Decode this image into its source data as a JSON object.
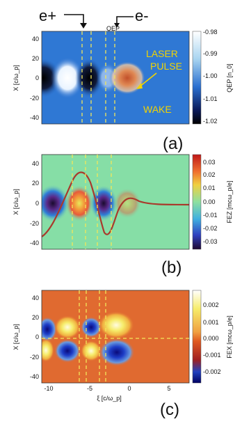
{
  "header": {
    "positron_label": "e+",
    "electron_label": "e-",
    "small_label": "QEP"
  },
  "panels": [
    {
      "id": "a",
      "panel_label": "(a)",
      "ylabel": "X [c/ω_p]",
      "yticks": [
        "40",
        "20",
        "0",
        "-20",
        "-40"
      ],
      "colorbar_label": "QEP [n_0]",
      "colorbar_ticks": [
        "-0.98",
        "-0.99",
        "-1.00",
        "-1.01",
        "-1.02"
      ],
      "annotations": [
        "LASER",
        "PULSE",
        "WAKE"
      ]
    },
    {
      "id": "b",
      "panel_label": "(b)",
      "ylabel": "X [c/ω_p]",
      "yticks": [
        "40",
        "20",
        "0",
        "-20",
        "-40"
      ],
      "colorbar_label": "FEZ [mcω_p/e]",
      "colorbar_ticks": [
        "0.03",
        "0.02",
        "0.01",
        "0.00",
        "-0.01",
        "-0.02",
        "-0.03"
      ]
    },
    {
      "id": "c",
      "panel_label": "(c)",
      "ylabel": "X [c/ω_p]",
      "yticks": [
        "40",
        "20",
        "0",
        "-20",
        "-40"
      ],
      "xlabel": "ξ [c/ω_p]",
      "xticks": [
        "-10",
        "-5",
        "0",
        "5"
      ],
      "colorbar_label": "FEX [mcω_p/e]",
      "colorbar_ticks": [
        "0.002",
        "0.001",
        "0.000",
        "-0.001",
        "-0.002"
      ]
    }
  ],
  "chart_data": [
    {
      "type": "heatmap",
      "title": "",
      "xlabel": "",
      "ylabel": "X [c/ω_p]",
      "ylim": [
        -45,
        45
      ],
      "colorbar": {
        "label": "QEP [n_0]",
        "range": [
          -1.02,
          -0.98
        ]
      },
      "annotations": [
        "LASER",
        "PULSE",
        "WAKE"
      ]
    },
    {
      "type": "heatmap",
      "title": "",
      "xlabel": "",
      "ylabel": "X [c/ω_p]",
      "ylim": [
        -45,
        45
      ],
      "colorbar": {
        "label": "FEZ [mcω_p/e]",
        "range": [
          -0.035,
          0.035
        ]
      },
      "series": [
        {
          "x": [
            -11,
            -10,
            -9,
            -8,
            -7,
            -6,
            -5,
            -4,
            -3,
            -2,
            -1,
            0,
            1,
            2,
            3,
            4,
            5,
            6,
            7,
            8
          ],
          "values": [
            -33,
            -18,
            5,
            25,
            34,
            18,
            -8,
            -28,
            -33,
            -10,
            14,
            18,
            6,
            1,
            0,
            0,
            0,
            0,
            0,
            0
          ]
        }
      ]
    },
    {
      "type": "heatmap",
      "title": "",
      "xlabel": "ξ [c/ω_p]",
      "ylabel": "X [c/ω_p]",
      "xlim": [
        -11,
        8
      ],
      "ylim": [
        -45,
        45
      ],
      "colorbar": {
        "label": "FEX [mcω_p/e]",
        "range": [
          -0.0025,
          0.0025
        ]
      }
    }
  ]
}
